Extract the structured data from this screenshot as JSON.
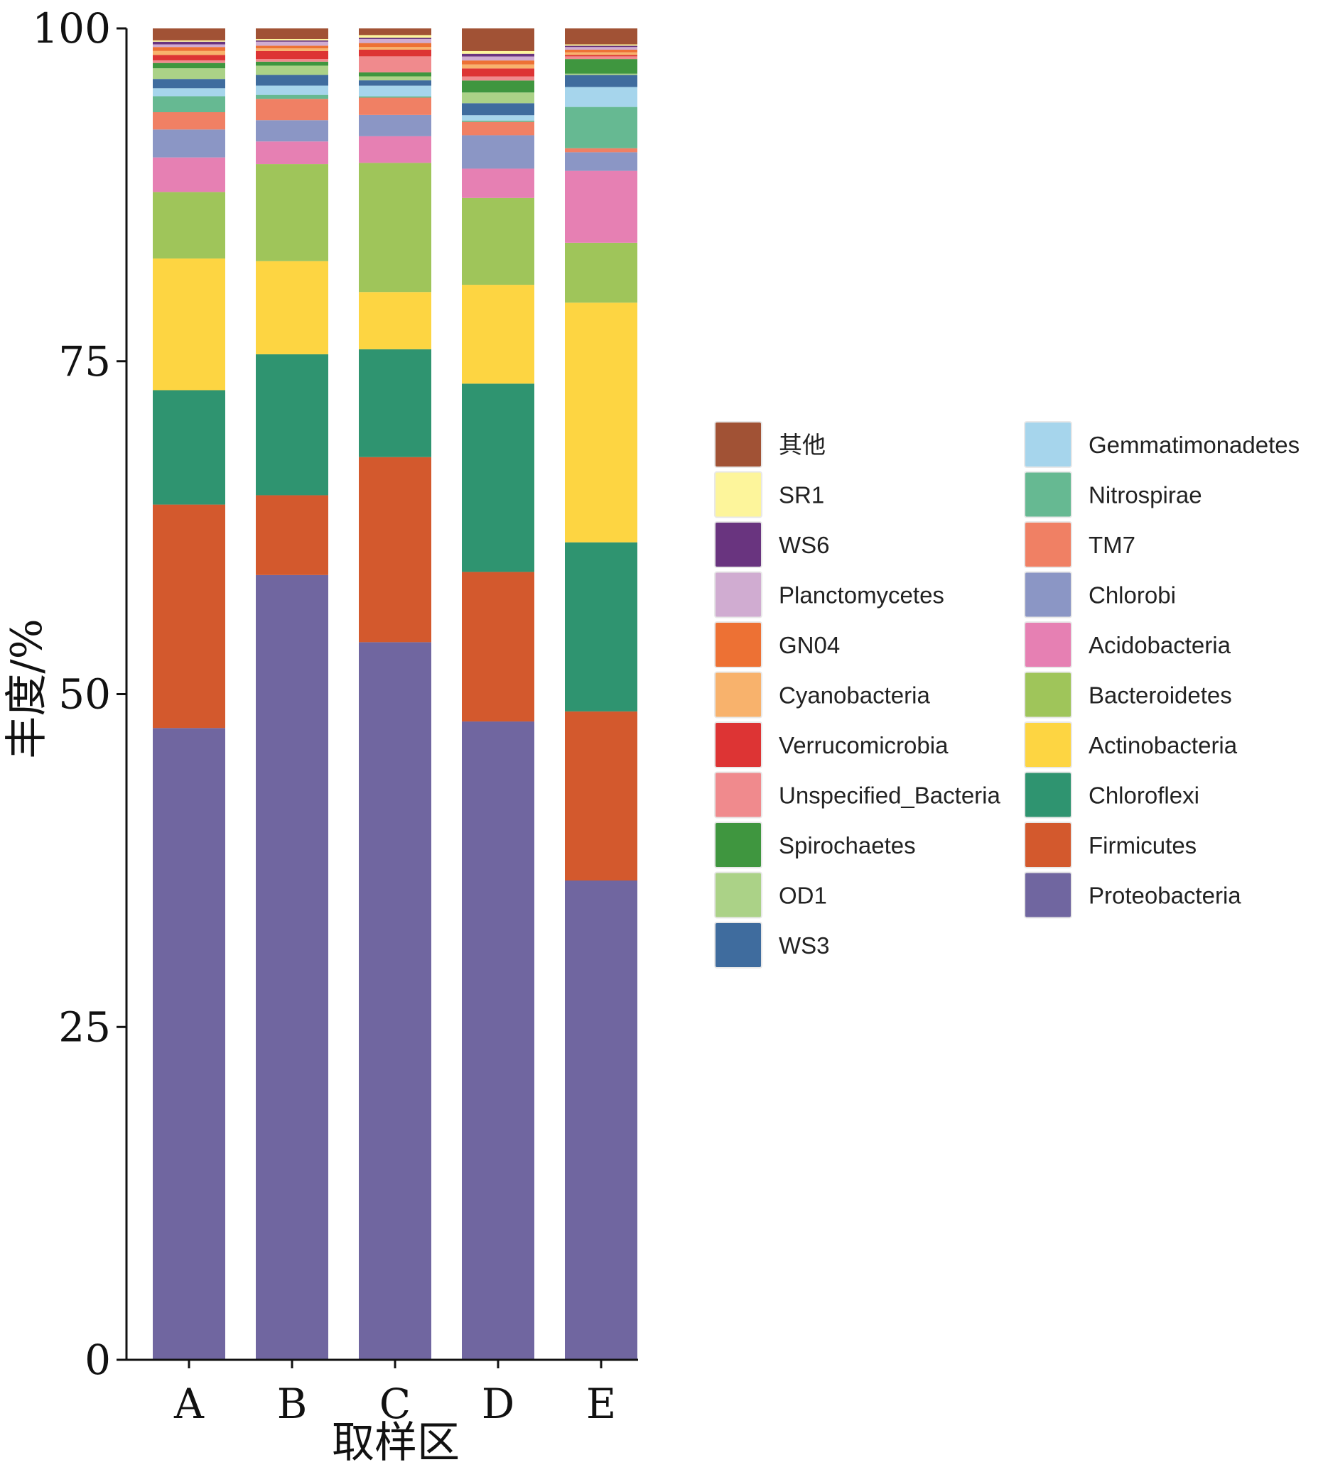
{
  "chart_data": {
    "type": "bar",
    "stacked": true,
    "xlabel": "取样区",
    "ylabel": "丰度/%",
    "ylim": [
      0,
      100
    ],
    "yticks": [
      0,
      25,
      50,
      75,
      100
    ],
    "categories": [
      "A",
      "B",
      "C",
      "D",
      "E"
    ],
    "legend_placement": "right",
    "grid": false,
    "series": [
      {
        "name": "Proteobacteria",
        "color": "#7066a0",
        "values": [
          47.5,
          59,
          53.9,
          47.8,
          36
        ]
      },
      {
        "name": "Firmicutes",
        "color": "#d3592d",
        "values": [
          16.8,
          6,
          13.9,
          11.2,
          12.7
        ]
      },
      {
        "name": "Chloroflexi",
        "color": "#2f9470",
        "values": [
          8.6,
          10.6,
          8.1,
          14.1,
          12.7
        ]
      },
      {
        "name": "Actinobacteria",
        "color": "#fdd542",
        "values": [
          9.9,
          7,
          4.3,
          7.4,
          18
        ]
      },
      {
        "name": "Bacteroidetes",
        "color": "#9fc55a",
        "values": [
          5,
          7.3,
          9.7,
          6.5,
          4.5
        ]
      },
      {
        "name": "Acidobacteria",
        "color": "#e680b3",
        "values": [
          2.6,
          1.7,
          2,
          2.2,
          5.4
        ]
      },
      {
        "name": "Chlorobi",
        "color": "#8b96c5",
        "values": [
          2.1,
          1.6,
          1.6,
          2.5,
          1.4
        ]
      },
      {
        "name": "TM7",
        "color": "#f08064",
        "values": [
          1.3,
          1.6,
          1.3,
          1,
          0.3
        ]
      },
      {
        "name": "Nitrospirae",
        "color": "#66b992",
        "values": [
          1.2,
          0.3,
          0.1,
          0.1,
          3.1
        ]
      },
      {
        "name": "Gemmatimonadetes",
        "color": "#a6d5ec",
        "values": [
          0.6,
          0.7,
          0.8,
          0.4,
          1.5
        ]
      },
      {
        "name": "WS3",
        "color": "#3f6c9e",
        "values": [
          0.7,
          0.8,
          0.4,
          0.9,
          0.9
        ]
      },
      {
        "name": "OD1",
        "color": "#abd287",
        "values": [
          0.8,
          0.7,
          0.3,
          0.8,
          0.1
        ]
      },
      {
        "name": "Spirochaetes",
        "color": "#3f963f",
        "values": [
          0.4,
          0.3,
          0.3,
          0.9,
          1.1
        ]
      },
      {
        "name": "Unspecified_Bacteria",
        "color": "#f08a8d",
        "values": [
          0.2,
          0.2,
          1.2,
          0.3,
          0.2
        ]
      },
      {
        "name": "Verrucomicrobia",
        "color": "#dd3434",
        "values": [
          0.4,
          0.6,
          0.5,
          0.6,
          0.1
        ]
      },
      {
        "name": "Cyanobacteria",
        "color": "#f8b26c",
        "values": [
          0.3,
          0.2,
          0.2,
          0.3,
          0.2
        ]
      },
      {
        "name": "GN04",
        "color": "#ed7134",
        "values": [
          0.3,
          0.2,
          0.3,
          0.3,
          0.2
        ]
      },
      {
        "name": "Planctomycetes",
        "color": "#d0acd1",
        "values": [
          0.2,
          0.3,
          0.3,
          0.3,
          0.2
        ]
      },
      {
        "name": "WS6",
        "color": "#69347f",
        "values": [
          0.2,
          0.1,
          0.1,
          0.2,
          0.1
        ]
      },
      {
        "name": "SR1",
        "color": "#fdf59b",
        "values": [
          0.1,
          0.1,
          0.2,
          0.2,
          0.1
        ]
      },
      {
        "name": "其他",
        "color": "#a15235",
        "values": [
          0.9,
          0.8,
          0.5,
          1.7,
          1.2
        ]
      }
    ]
  },
  "legend_order": [
    "其他",
    "SR1",
    "WS6",
    "Planctomycetes",
    "GN04",
    "Cyanobacteria",
    "Verrucomicrobia",
    "Unspecified_Bacteria",
    "Spirochaetes",
    "OD1",
    "WS3",
    "Gemmatimonadetes",
    "Nitrospirae",
    "TM7",
    "Chlorobi",
    "Acidobacteria",
    "Bacteroidetes",
    "Actinobacteria",
    "Chloroflexi",
    "Firmicutes",
    "Proteobacteria"
  ]
}
